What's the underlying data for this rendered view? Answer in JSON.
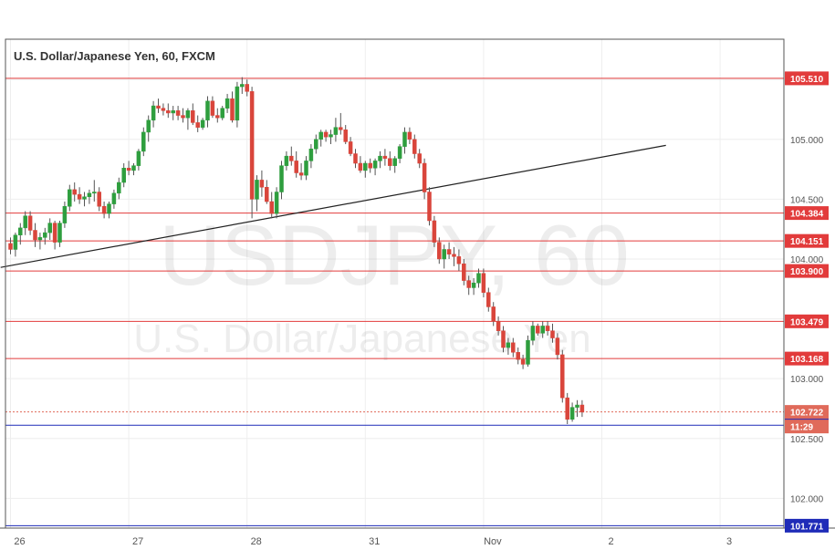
{
  "header": {
    "title": "U.S. Dollar/Japanese Yen, 60, FXCM"
  },
  "watermark": {
    "symbol": "USDJPY, 60",
    "name": "U.S. Dollar/Japanese Yen"
  },
  "colors": {
    "up": "#2e9e3e",
    "down": "#d9453b",
    "level": "#e23b3b",
    "support": "#1f2cb8",
    "current": "#e06a5a",
    "trendline": "#222222",
    "grid": "#eeeeee",
    "axis": "#555555"
  },
  "chart_data": {
    "type": "candlestick",
    "title": "U.S. Dollar/Japanese Yen, 60, FXCM",
    "ylim": [
      101.7,
      105.75
    ],
    "y_ticks": [
      102.0,
      102.5,
      103.0,
      103.5,
      104.0,
      104.5,
      105.0,
      105.5
    ],
    "y_tick_labels": [
      "102.000",
      "102.500",
      "103.000",
      "103.500",
      "104.000",
      "104.500",
      "105.000",
      "105.500"
    ],
    "x_tick_labels": [
      {
        "label": "26",
        "t": 0
      },
      {
        "label": "27",
        "t": 24
      },
      {
        "label": "28",
        "t": 48
      },
      {
        "label": "31",
        "t": 72
      },
      {
        "label": "Nov",
        "t": 96
      },
      {
        "label": "2",
        "t": 120
      },
      {
        "label": "3",
        "t": 144
      }
    ],
    "resistance_levels": [
      {
        "value": 105.51,
        "label": "105.510"
      },
      {
        "value": 104.384,
        "label": "104.384"
      },
      {
        "value": 104.151,
        "label": "104.151"
      },
      {
        "value": 103.9,
        "label": "103.900"
      },
      {
        "value": 103.479,
        "label": "103.479"
      },
      {
        "value": 103.168,
        "label": "103.168"
      }
    ],
    "support_levels": [
      {
        "value": 102.611,
        "label": "102.611"
      },
      {
        "value": 101.771,
        "label": "101.771"
      }
    ],
    "current_price": {
      "value": 102.722,
      "label": "102.722",
      "countdown": "11:29"
    },
    "trendline": {
      "t1": -2,
      "v1": 103.93,
      "t2": 133,
      "v2": 104.95
    },
    "candles": [
      [
        104.13,
        104.18,
        104.04,
        104.08
      ],
      [
        104.08,
        104.22,
        104.02,
        104.2
      ],
      [
        104.2,
        104.3,
        104.12,
        104.26
      ],
      [
        104.26,
        104.4,
        104.2,
        104.36
      ],
      [
        104.36,
        104.4,
        104.2,
        104.24
      ],
      [
        104.24,
        104.3,
        104.1,
        104.16
      ],
      [
        104.16,
        104.22,
        104.08,
        104.18
      ],
      [
        104.18,
        104.26,
        104.12,
        104.22
      ],
      [
        104.22,
        104.34,
        104.16,
        104.3
      ],
      [
        104.3,
        104.32,
        104.08,
        104.14
      ],
      [
        104.14,
        104.32,
        104.1,
        104.3
      ],
      [
        104.3,
        104.48,
        104.26,
        104.44
      ],
      [
        104.44,
        104.62,
        104.4,
        104.58
      ],
      [
        104.58,
        104.64,
        104.48,
        104.54
      ],
      [
        104.54,
        104.6,
        104.46,
        104.5
      ],
      [
        104.5,
        104.56,
        104.44,
        104.52
      ],
      [
        104.52,
        104.58,
        104.46,
        104.55
      ],
      [
        104.55,
        104.66,
        104.48,
        104.56
      ],
      [
        104.56,
        104.6,
        104.4,
        104.44
      ],
      [
        104.44,
        104.48,
        104.34,
        104.38
      ],
      [
        104.38,
        104.48,
        104.34,
        104.46
      ],
      [
        104.46,
        104.58,
        104.42,
        104.55
      ],
      [
        104.55,
        104.68,
        104.5,
        104.64
      ],
      [
        104.64,
        104.8,
        104.6,
        104.76
      ],
      [
        104.76,
        104.82,
        104.7,
        104.74
      ],
      [
        104.74,
        104.8,
        104.7,
        104.78
      ],
      [
        104.78,
        104.92,
        104.74,
        104.9
      ],
      [
        104.9,
        105.1,
        104.86,
        105.06
      ],
      [
        105.06,
        105.2,
        104.98,
        105.16
      ],
      [
        105.16,
        105.32,
        105.1,
        105.28
      ],
      [
        105.28,
        105.34,
        105.22,
        105.26
      ],
      [
        105.26,
        105.3,
        105.2,
        105.24
      ],
      [
        105.24,
        105.3,
        105.18,
        105.22
      ],
      [
        105.22,
        105.28,
        105.16,
        105.24
      ],
      [
        105.24,
        105.28,
        105.16,
        105.2
      ],
      [
        105.2,
        105.26,
        105.14,
        105.18
      ],
      [
        105.18,
        105.26,
        105.08,
        105.24
      ],
      [
        105.24,
        105.3,
        105.12,
        105.14
      ],
      [
        105.14,
        105.2,
        105.06,
        105.1
      ],
      [
        105.1,
        105.18,
        105.08,
        105.16
      ],
      [
        105.16,
        105.36,
        105.1,
        105.32
      ],
      [
        105.32,
        105.36,
        105.18,
        105.2
      ],
      [
        105.2,
        105.26,
        105.14,
        105.18
      ],
      [
        105.18,
        105.28,
        105.16,
        105.26
      ],
      [
        105.26,
        105.38,
        105.22,
        105.34
      ],
      [
        105.34,
        105.4,
        105.14,
        105.16
      ],
      [
        105.16,
        105.48,
        105.1,
        105.44
      ],
      [
        105.44,
        105.52,
        105.38,
        105.46
      ],
      [
        105.46,
        105.5,
        105.36,
        105.4
      ],
      [
        105.4,
        105.44,
        104.34,
        104.5
      ],
      [
        104.5,
        104.7,
        104.4,
        104.66
      ],
      [
        104.66,
        104.74,
        104.52,
        104.6
      ],
      [
        104.6,
        104.66,
        104.46,
        104.48
      ],
      [
        104.48,
        104.56,
        104.34,
        104.38
      ],
      [
        104.38,
        104.6,
        104.34,
        104.56
      ],
      [
        104.56,
        104.82,
        104.5,
        104.78
      ],
      [
        104.78,
        104.9,
        104.74,
        104.86
      ],
      [
        104.86,
        104.94,
        104.78,
        104.82
      ],
      [
        104.82,
        104.9,
        104.68,
        104.72
      ],
      [
        104.72,
        104.8,
        104.66,
        104.7
      ],
      [
        104.7,
        104.86,
        104.66,
        104.82
      ],
      [
        104.82,
        104.96,
        104.76,
        104.92
      ],
      [
        104.92,
        105.04,
        104.88,
        105.0
      ],
      [
        105.0,
        105.08,
        104.94,
        105.06
      ],
      [
        105.06,
        105.08,
        104.98,
        105.02
      ],
      [
        105.02,
        105.08,
        104.96,
        105.04
      ],
      [
        105.04,
        105.18,
        104.98,
        105.1
      ],
      [
        105.1,
        105.22,
        105.04,
        105.08
      ],
      [
        105.08,
        105.12,
        104.96,
        104.98
      ],
      [
        104.98,
        105.02,
        104.86,
        104.88
      ],
      [
        104.88,
        104.92,
        104.76,
        104.8
      ],
      [
        104.8,
        104.86,
        104.72,
        104.74
      ],
      [
        104.74,
        104.82,
        104.68,
        104.8
      ],
      [
        104.8,
        104.84,
        104.72,
        104.76
      ],
      [
        104.76,
        104.84,
        104.7,
        104.82
      ],
      [
        104.82,
        104.9,
        104.76,
        104.86
      ],
      [
        104.86,
        104.92,
        104.78,
        104.84
      ],
      [
        104.84,
        104.9,
        104.74,
        104.78
      ],
      [
        104.78,
        104.86,
        104.72,
        104.84
      ],
      [
        104.84,
        104.96,
        104.8,
        104.94
      ],
      [
        104.94,
        105.1,
        104.88,
        105.06
      ],
      [
        105.06,
        105.1,
        104.96,
        105.0
      ],
      [
        105.0,
        105.04,
        104.84,
        104.88
      ],
      [
        104.88,
        104.92,
        104.76,
        104.8
      ],
      [
        104.8,
        104.84,
        104.5,
        104.56
      ],
      [
        104.56,
        104.6,
        104.28,
        104.32
      ],
      [
        104.32,
        104.36,
        104.1,
        104.14
      ],
      [
        104.14,
        104.18,
        103.96,
        104.0
      ],
      [
        104.0,
        104.12,
        103.92,
        104.08
      ],
      [
        104.08,
        104.14,
        104.0,
        104.04
      ],
      [
        104.04,
        104.1,
        103.94,
        104.02
      ],
      [
        104.02,
        104.08,
        103.9,
        103.96
      ],
      [
        103.96,
        104.0,
        103.78,
        103.82
      ],
      [
        103.82,
        103.86,
        103.7,
        103.76
      ],
      [
        103.76,
        103.84,
        103.7,
        103.8
      ],
      [
        103.8,
        103.92,
        103.76,
        103.88
      ],
      [
        103.88,
        103.92,
        103.68,
        103.72
      ],
      [
        103.72,
        103.76,
        103.56,
        103.6
      ],
      [
        103.6,
        103.64,
        103.44,
        103.48
      ],
      [
        103.48,
        103.52,
        103.36,
        103.4
      ],
      [
        103.4,
        103.44,
        103.22,
        103.26
      ],
      [
        103.26,
        103.34,
        103.2,
        103.3
      ],
      [
        103.3,
        103.34,
        103.18,
        103.22
      ],
      [
        103.22,
        103.26,
        103.12,
        103.16
      ],
      [
        103.16,
        103.2,
        103.08,
        103.12
      ],
      [
        103.12,
        103.36,
        103.1,
        103.32
      ],
      [
        103.32,
        103.48,
        103.28,
        103.44
      ],
      [
        103.44,
        103.46,
        103.36,
        103.38
      ],
      [
        103.38,
        103.48,
        103.34,
        103.44
      ],
      [
        103.44,
        103.48,
        103.36,
        103.4
      ],
      [
        103.4,
        103.46,
        103.3,
        103.34
      ],
      [
        103.34,
        103.38,
        103.16,
        103.2
      ],
      [
        103.2,
        103.24,
        102.8,
        102.84
      ],
      [
        102.84,
        102.88,
        102.62,
        102.66
      ],
      [
        102.66,
        102.8,
        102.64,
        102.76
      ],
      [
        102.76,
        102.82,
        102.68,
        102.78
      ],
      [
        102.78,
        102.82,
        102.68,
        102.72
      ]
    ]
  }
}
